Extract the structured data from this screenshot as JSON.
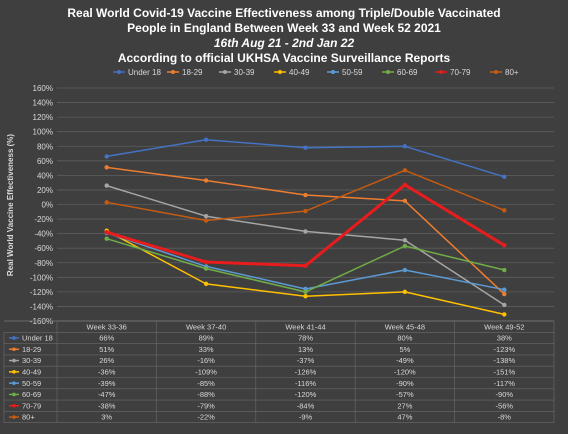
{
  "chart_data": {
    "type": "line",
    "title": "Real World Covid-19 Vaccine Effectiveness among Triple/Double Vaccinated",
    "title_line2": "People in England Between Week 33 and Week 52 2021",
    "subtitle": "16th Aug 21 - 2nd Jan 22",
    "subtitle2": "According to official UKHSA Vaccine Surveillance Reports",
    "ylabel": "Real World  Vaccine  Effectiveness (%)",
    "xlabel": "",
    "ylim": [
      -160,
      160
    ],
    "yticks": [
      "160%",
      "140%",
      "120%",
      "100%",
      "80%",
      "60%",
      "40%",
      "20%",
      "0%",
      "-20%",
      "-40%",
      "-60%",
      "-80%",
      "-100%",
      "-120%",
      "-140%",
      "-160%"
    ],
    "categories": [
      "Week 33-36",
      "Week 37-40",
      "Week 41-44",
      "Week 45-48",
      "Week 49-52"
    ],
    "grid": true,
    "legend_position": "top",
    "series": [
      {
        "name": "Under 18",
        "color": "#4472c4",
        "width": 1.5,
        "values": [
          66,
          89,
          78,
          80,
          38
        ],
        "labels": [
          "66%",
          "89%",
          "78%",
          "80%",
          "38%"
        ]
      },
      {
        "name": "18-29",
        "color": "#ed7d31",
        "width": 1.5,
        "values": [
          51,
          33,
          13,
          5,
          -123
        ],
        "labels": [
          "51%",
          "33%",
          "13%",
          "5%",
          "-123%"
        ]
      },
      {
        "name": "30-39",
        "color": "#a5a5a5",
        "width": 1.5,
        "values": [
          26,
          -16,
          -37,
          -49,
          -138
        ],
        "labels": [
          "26%",
          "-16%",
          "-37%",
          "-49%",
          "-138%"
        ]
      },
      {
        "name": "40-49",
        "color": "#ffc000",
        "width": 1.5,
        "values": [
          -36,
          -109,
          -126,
          -120,
          -151
        ],
        "labels": [
          "-36%",
          "-109%",
          "-126%",
          "-120%",
          "-151%"
        ]
      },
      {
        "name": "50-59",
        "color": "#5b9bd5",
        "width": 1.5,
        "values": [
          -39,
          -85,
          -116,
          -90,
          -117
        ],
        "labels": [
          "-39%",
          "-85%",
          "-116%",
          "-90%",
          "-117%"
        ]
      },
      {
        "name": "60-69",
        "color": "#70ad47",
        "width": 1.5,
        "values": [
          -47,
          -88,
          -120,
          -57,
          -90
        ],
        "labels": [
          "-47%",
          "-88%",
          "-120%",
          "-57%",
          "-90%"
        ]
      },
      {
        "name": "70-79",
        "color": "#e81c1c",
        "width": 3,
        "values": [
          -38,
          -79,
          -84,
          27,
          -56
        ],
        "labels": [
          "-38%",
          "-79%",
          "-84%",
          "27%",
          "-56%"
        ]
      },
      {
        "name": "80+",
        "color": "#c55a11",
        "width": 1.5,
        "values": [
          3,
          -22,
          -9,
          47,
          -8
        ],
        "labels": [
          "3%",
          "-22%",
          "-9%",
          "47%",
          "-8%"
        ]
      }
    ]
  }
}
